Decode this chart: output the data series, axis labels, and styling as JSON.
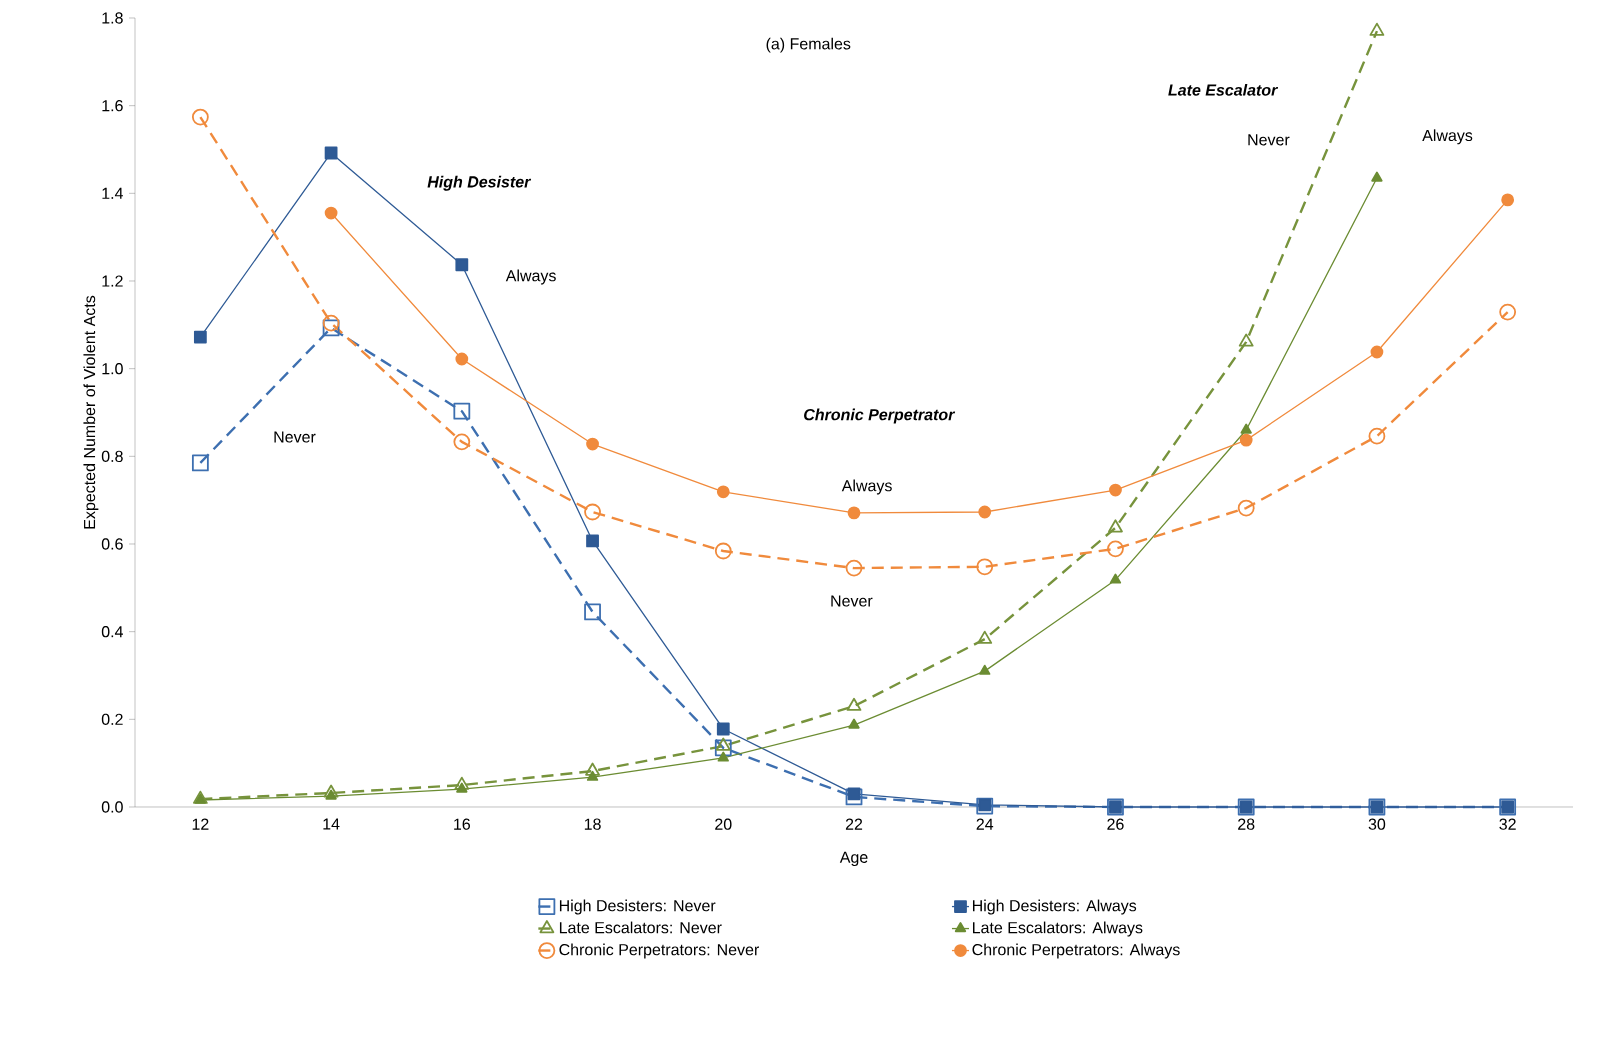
{
  "chart_data": {
    "type": "line",
    "title": "(a) Females",
    "xlabel": "Age",
    "ylabel": "Expected Number of Violent Acts",
    "categories": [
      "12",
      "14",
      "16",
      "18",
      "20",
      "22",
      "24",
      "26",
      "28",
      "30",
      "32"
    ],
    "ylim": [
      0,
      1.8
    ],
    "yticks": [
      {
        "value": 0,
        "label": "0.0"
      },
      {
        "value": 0.2,
        "label": "0.2"
      },
      {
        "value": 0.4,
        "label": "0.4"
      },
      {
        "value": 0.6,
        "label": "0.6"
      },
      {
        "value": 0.8,
        "label": "0.8"
      },
      {
        "value": 1.0,
        "label": "1.0"
      },
      {
        "value": 1.2,
        "label": "1.2"
      },
      {
        "value": 1.4,
        "label": "1.4"
      },
      {
        "value": 1.6,
        "label": "1.6"
      },
      {
        "value": 1.8,
        "label": "1.8"
      }
    ],
    "grid": false,
    "legend": "bottom",
    "series": [
      {
        "name": "High Desisters: Never",
        "color": "#3d6fb0",
        "marker": "square",
        "line_style": "dashed",
        "values": [
          0.785,
          1.093,
          0.903,
          0.445,
          0.135,
          0.023,
          0.002,
          0,
          0,
          0,
          0
        ]
      },
      {
        "name": "High Desisters: Always",
        "color": "#2e5a95",
        "marker": "square",
        "line_style": "solid",
        "values": [
          1.072,
          1.492,
          1.237,
          0.607,
          0.178,
          0.03,
          0.005,
          0,
          0,
          0,
          0
        ]
      },
      {
        "name": "Late Escalators: Never",
        "color": "#77933c",
        "marker": "triangle",
        "line_style": "dashed",
        "values": [
          0.018,
          0.032,
          0.05,
          0.082,
          0.139,
          0.23,
          0.383,
          0.637,
          1.061,
          1.77,
          null
        ]
      },
      {
        "name": "Late Escalators: Always",
        "color": "#6b8c32",
        "marker": "triangle",
        "line_style": "solid",
        "values": [
          0.016,
          0.025,
          0.041,
          0.068,
          0.112,
          0.187,
          0.31,
          0.518,
          0.86,
          1.435,
          null
        ]
      },
      {
        "name": "Chronic Perpetrators: Never",
        "color": "#f08a3c",
        "marker": "circle",
        "line_style": "dashed",
        "values": [
          1.574,
          1.104,
          0.833,
          0.673,
          0.584,
          0.545,
          0.548,
          0.589,
          0.682,
          0.846,
          1.129
        ]
      },
      {
        "name": "Chronic Perpetrators: Always",
        "color": "#f08a3c",
        "marker": "circle",
        "line_style": "solid",
        "values": [
          null,
          1.355,
          1.022,
          0.828,
          0.719,
          0.671,
          0.673,
          0.723,
          0.837,
          1.038,
          1.385
        ]
      }
    ],
    "annotations": [
      "High Desister",
      "Always",
      "Never",
      "Chronic Perpetrator",
      "Always",
      "Never",
      "Late Escalator",
      "Never",
      "Always"
    ]
  }
}
